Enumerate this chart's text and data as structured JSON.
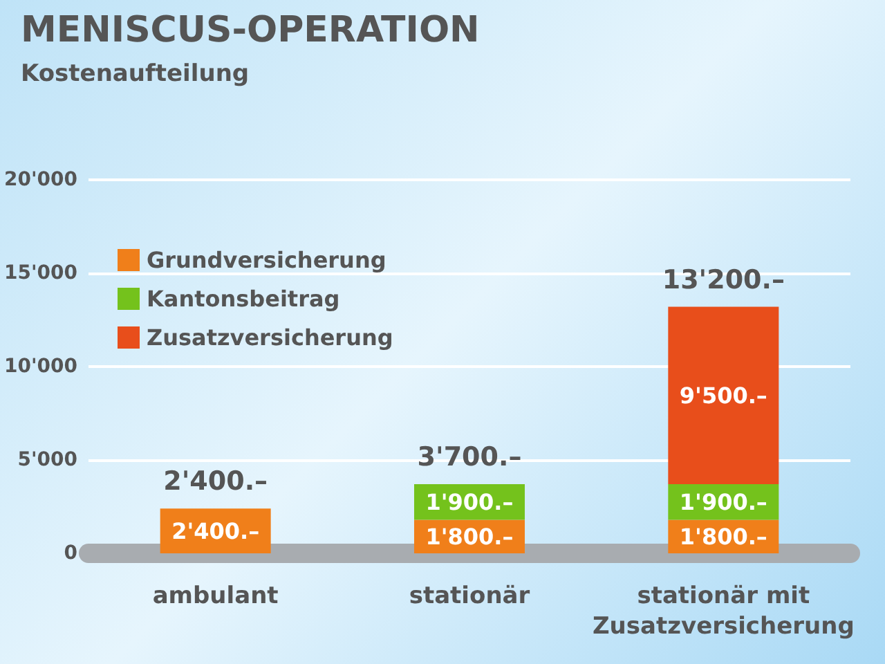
{
  "chart_data": {
    "type": "bar",
    "title": "MENISCUS-OPERATION",
    "subtitle": "Kostenaufteilung",
    "categories": [
      "ambulant",
      "stationär",
      "stationär mit\nZusatzversicherung"
    ],
    "stacked": true,
    "series": [
      {
        "name": "Grundversicherung",
        "color": "#f07f1a",
        "values": [
          2400,
          1800,
          1800
        ],
        "value_labels": [
          "2'400.–",
          "1'800.–",
          "1'800.–"
        ]
      },
      {
        "name": "Kantonsbeitrag",
        "color": "#74c21c",
        "values": [
          null,
          1900,
          1900
        ],
        "value_labels": [
          null,
          "1'900.–",
          "1'900.–"
        ]
      },
      {
        "name": "Zusatzversicherung",
        "color": "#e84e1b",
        "values": [
          null,
          null,
          9500
        ],
        "value_labels": [
          null,
          null,
          "9'500.–"
        ]
      }
    ],
    "totals": [
      "2'400.–",
      "3'700.–",
      "13'200.–"
    ],
    "ylim": [
      0,
      20000
    ],
    "yticks": [
      {
        "value": 0,
        "label": "0"
      },
      {
        "value": 5000,
        "label": "5'000"
      },
      {
        "value": 10000,
        "label": "10'000"
      },
      {
        "value": 15000,
        "label": "15'000"
      },
      {
        "value": 20000,
        "label": "20'000"
      }
    ],
    "grid": "y",
    "legend": "top left"
  }
}
